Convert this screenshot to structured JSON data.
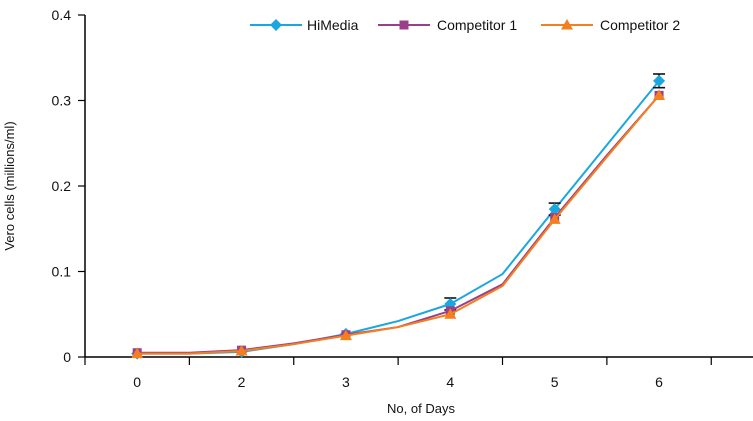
{
  "chart_data": {
    "type": "line",
    "title": "",
    "xlabel": "No, of Days",
    "ylabel": "Vero cells (millions/ml)",
    "ylim": [
      0,
      0.4
    ],
    "y_ticks": [
      0,
      0.1,
      0.2,
      0.3,
      0.4
    ],
    "y_tick_labels": [
      "0",
      "0.1",
      "0.2",
      "0.3",
      "0.4"
    ],
    "x_tick_labels": [
      "0",
      "2",
      "3",
      "4",
      "5",
      "6"
    ],
    "x_tick_positions": [
      0,
      1,
      2,
      3,
      4,
      5
    ],
    "xlim": [
      -0.5,
      5.9
    ],
    "legend_position": "top-right",
    "grid": false,
    "series": [
      {
        "name": "HiMedia",
        "color": "#1aa7e0",
        "marker": "diamond",
        "x": [
          0,
          0.5,
          1,
          1.5,
          2,
          2.5,
          3,
          3.5,
          4,
          4.5,
          5
        ],
        "values": [
          0.004,
          0.004,
          0.006,
          0.015,
          0.027,
          0.042,
          0.062,
          0.097,
          0.173,
          0.248,
          0.323
        ],
        "marked": [
          true,
          false,
          true,
          false,
          true,
          false,
          true,
          false,
          true,
          false,
          true
        ],
        "error": [
          0,
          0,
          0,
          0,
          0,
          0,
          0.007,
          0,
          0.007,
          0,
          0.008
        ]
      },
      {
        "name": "Competitor 1",
        "color": "#9b3f8a",
        "marker": "square",
        "x": [
          0,
          0.5,
          1,
          1.5,
          2,
          2.5,
          3,
          3.5,
          4,
          4.5,
          5
        ],
        "values": [
          0.005,
          0.005,
          0.008,
          0.016,
          0.026,
          0.035,
          0.054,
          0.085,
          0.163,
          0.236,
          0.306
        ],
        "marked": [
          true,
          false,
          true,
          false,
          true,
          false,
          true,
          false,
          true,
          false,
          true
        ],
        "error": [
          0,
          0,
          0,
          0,
          0,
          0,
          0,
          0,
          0,
          0,
          0
        ]
      },
      {
        "name": "Competitor 2",
        "color": "#f47f1f",
        "marker": "triangle",
        "x": [
          0,
          0.5,
          1,
          1.5,
          2,
          2.5,
          3,
          3.5,
          4,
          4.5,
          5
        ],
        "values": [
          0.004,
          0.004,
          0.007,
          0.015,
          0.025,
          0.035,
          0.05,
          0.083,
          0.161,
          0.234,
          0.306
        ],
        "marked": [
          true,
          false,
          true,
          false,
          true,
          false,
          true,
          false,
          true,
          false,
          true
        ],
        "error": [
          0,
          0,
          0,
          0,
          0,
          0,
          0,
          0,
          0,
          0,
          0
        ]
      }
    ]
  }
}
